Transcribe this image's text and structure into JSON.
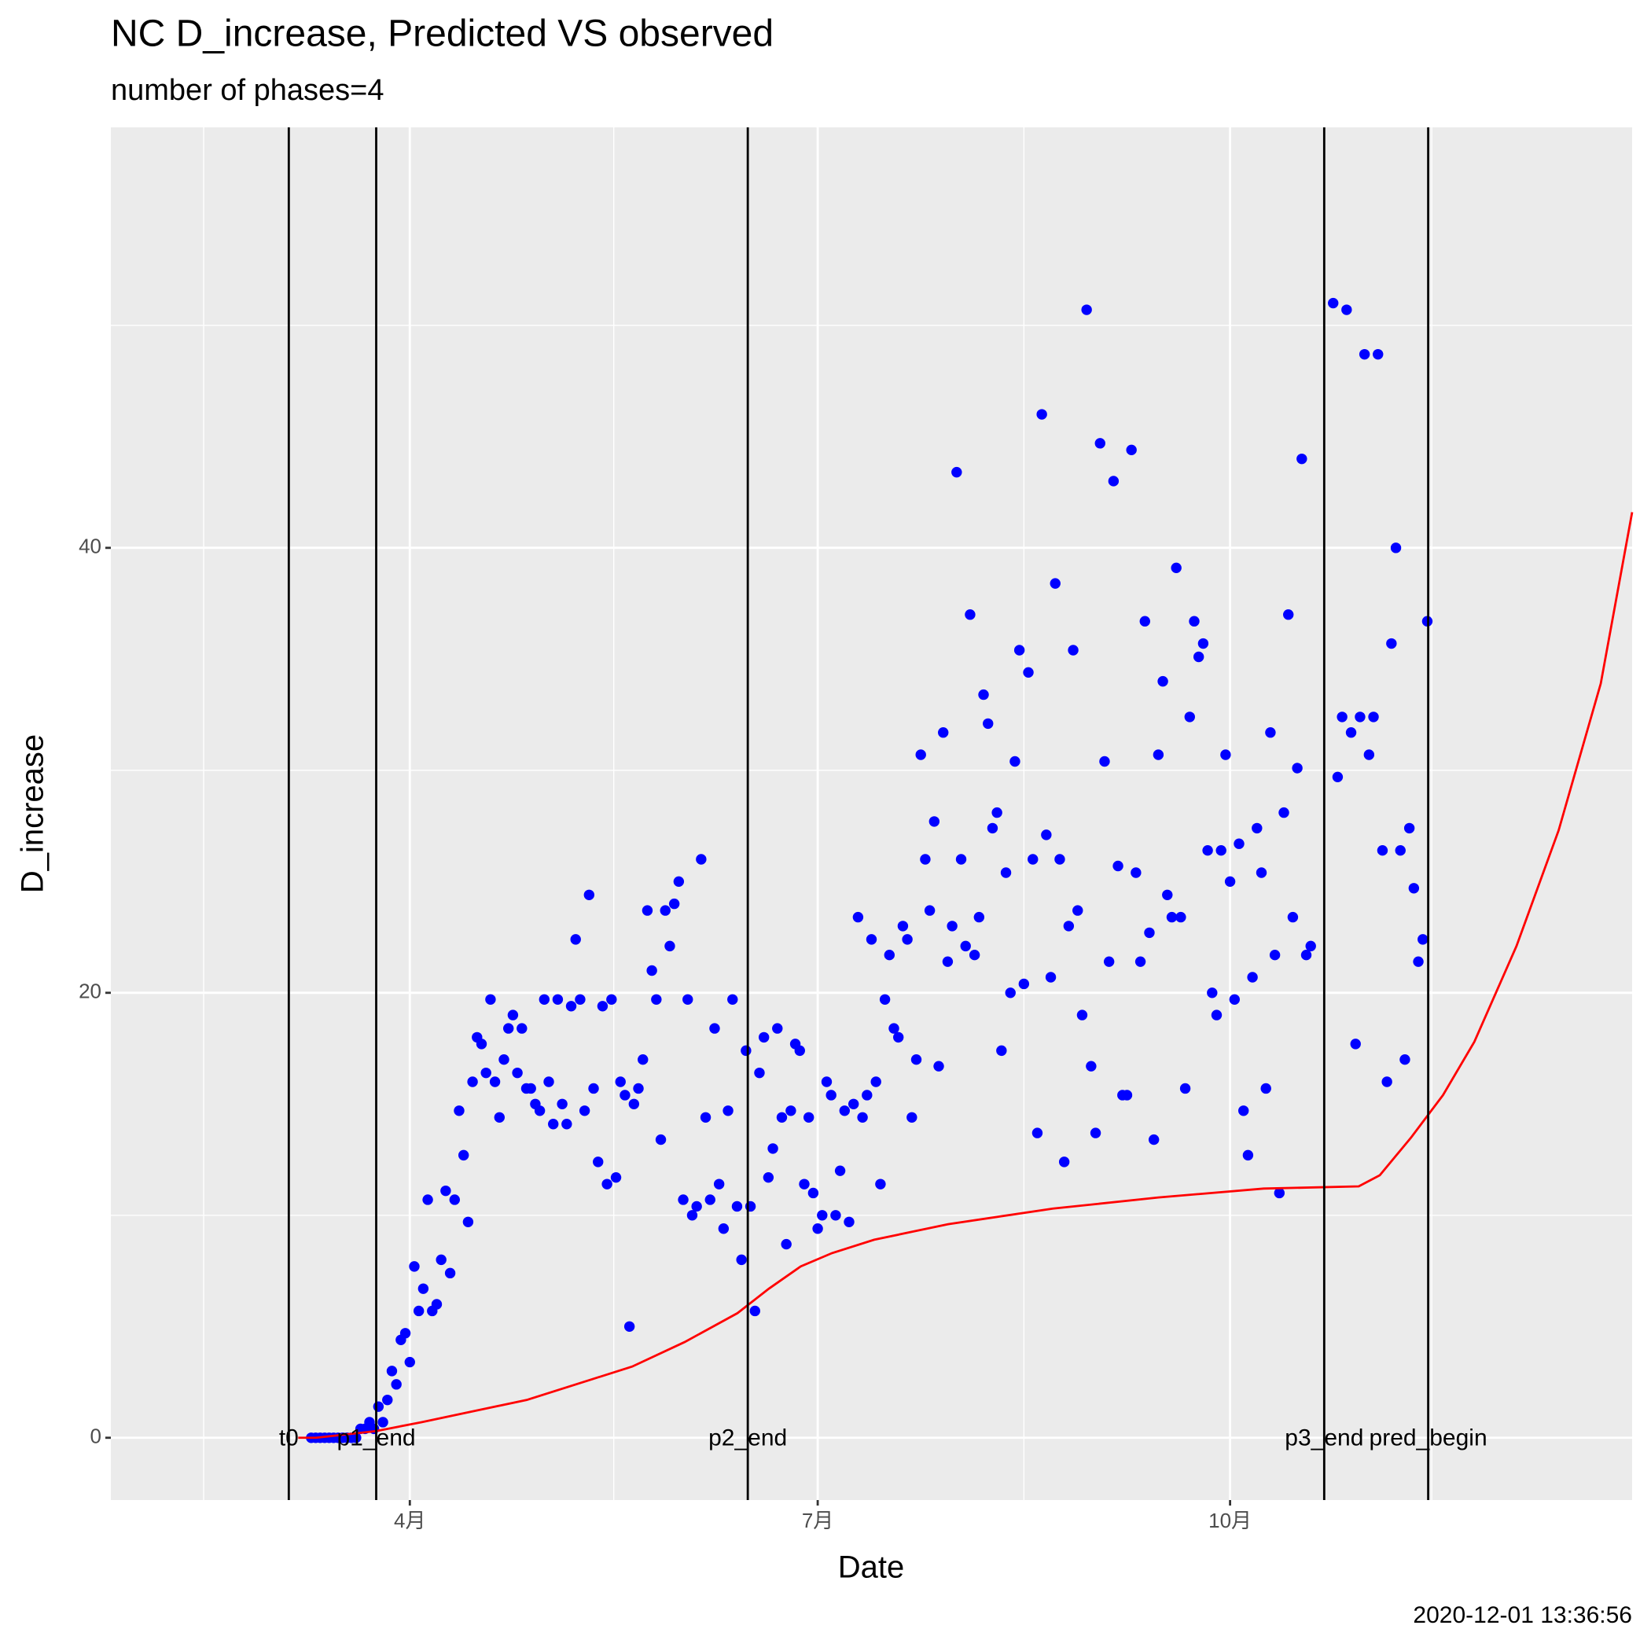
{
  "chart_data": {
    "type": "scatter",
    "title": "NC D_increase, Predicted VS observed",
    "subtitle": "number of phases=4",
    "xlabel": "Date",
    "ylabel": "D_increase",
    "caption": "2020-12-01 13:36:56",
    "xlim": [
      24.3,
      363.7
    ],
    "ylim": [
      -2.8,
      58.9
    ],
    "xticks": [
      {
        "value": 91,
        "label": "4月"
      },
      {
        "value": 182,
        "label": "7月"
      },
      {
        "value": 274,
        "label": "10月"
      }
    ],
    "yticks": [
      0,
      20,
      40
    ],
    "xminor": [
      45,
      136.5,
      228,
      319
    ],
    "yminor": [
      10,
      30,
      50
    ],
    "grid": true,
    "vlines": [
      {
        "x": 64,
        "label": "t0"
      },
      {
        "x": 83.5,
        "label": "p1_end"
      },
      {
        "x": 166.4,
        "label": "p2_end"
      },
      {
        "x": 295,
        "label": "p3_end"
      },
      {
        "x": 318.2,
        "label": "pred_begin"
      }
    ],
    "series": [
      {
        "type": "scatter",
        "color": "#0000ff",
        "x": [
          69,
          70,
          71,
          72,
          73,
          74,
          75,
          76,
          77,
          78,
          79,
          80,
          81,
          82,
          83,
          84,
          85,
          86,
          87,
          88,
          89,
          90,
          91,
          92,
          93,
          94,
          95,
          96,
          97,
          98,
          99,
          100,
          101,
          102,
          103,
          104,
          105,
          106,
          107,
          108,
          109,
          110,
          111,
          112,
          113,
          114,
          115,
          116,
          117,
          118,
          119,
          120,
          121,
          122,
          123,
          124,
          125,
          126,
          127,
          128,
          129,
          130,
          131,
          132,
          133,
          134,
          135,
          136,
          137,
          138,
          139,
          140,
          141,
          142,
          143,
          144,
          145,
          146,
          147,
          148,
          149,
          150,
          151,
          152,
          153,
          154,
          155,
          156,
          157,
          158,
          159,
          160,
          161,
          162,
          163,
          164,
          165,
          166,
          167,
          168,
          169,
          170,
          171,
          172,
          173,
          174,
          175,
          176,
          177,
          178,
          179,
          180,
          181,
          182,
          183,
          184,
          185,
          186,
          187,
          188,
          189,
          190,
          191,
          192,
          193,
          194,
          195,
          196,
          197,
          198,
          199,
          200,
          201,
          202,
          203,
          204,
          205,
          206,
          207,
          208,
          209,
          210,
          211,
          212,
          213,
          214,
          215,
          216,
          217,
          218,
          219,
          220,
          221,
          222,
          223,
          224,
          225,
          226,
          227,
          228,
          229,
          230,
          231,
          232,
          233,
          234,
          235,
          236,
          237,
          238,
          239,
          240,
          241,
          242,
          243,
          244,
          245,
          246,
          247,
          248,
          249,
          250,
          251,
          252,
          253,
          254,
          255,
          256,
          257,
          258,
          259,
          260,
          261,
          262,
          263,
          264,
          265,
          266,
          267,
          268,
          269,
          270,
          271,
          272,
          273,
          274,
          275,
          276,
          277,
          278,
          279,
          280,
          281,
          282,
          283,
          284,
          285,
          286,
          287,
          288,
          289,
          290,
          291,
          292,
          297,
          298,
          299,
          300,
          301,
          302,
          303,
          304,
          305,
          306,
          307,
          308,
          309,
          310,
          311,
          312,
          313,
          314,
          315,
          316,
          317,
          318
        ],
        "values": [
          0,
          0,
          0,
          0,
          0,
          0,
          0,
          0,
          0,
          0,
          0,
          0.4,
          0.4,
          0.7,
          0.4,
          1.4,
          0.7,
          1.7,
          3.0,
          2.4,
          4.4,
          4.7,
          3.4,
          7.7,
          5.7,
          6.7,
          10.7,
          5.7,
          6.0,
          8.0,
          11.1,
          7.4,
          10.7,
          14.7,
          12.7,
          9.7,
          16.0,
          18.0,
          17.7,
          16.4,
          19.7,
          16.0,
          14.4,
          17.0,
          18.4,
          19.0,
          16.4,
          18.4,
          15.7,
          15.7,
          15.0,
          14.7,
          19.7,
          16.0,
          14.1,
          19.7,
          15.0,
          14.1,
          19.4,
          22.4,
          19.7,
          14.7,
          24.4,
          15.7,
          12.4,
          19.4,
          11.4,
          19.7,
          11.7,
          16.0,
          15.4,
          5.0,
          15.0,
          15.7,
          17.0,
          23.7,
          21.0,
          19.7,
          13.4,
          23.7,
          22.1,
          24.0,
          25.0,
          10.7,
          19.7,
          10.0,
          10.4,
          26.0,
          14.4,
          10.7,
          18.4,
          11.4,
          9.4,
          14.7,
          19.7,
          10.4,
          8.0,
          17.4,
          10.4,
          5.7,
          16.4,
          18.0,
          11.7,
          13.0,
          18.4,
          14.4,
          8.7,
          14.7,
          17.7,
          17.4,
          11.4,
          14.4,
          11.0,
          9.4,
          10.0,
          16.0,
          15.4,
          10.0,
          12.0,
          14.7,
          9.7,
          15.0,
          23.4,
          14.4,
          15.4,
          22.4,
          16.0,
          11.4,
          19.7,
          21.7,
          18.4,
          18.0,
          23.0,
          22.4,
          14.4,
          17.0,
          30.7,
          26.0,
          23.7,
          27.7,
          16.7,
          31.7,
          21.4,
          23.0,
          43.4,
          26.0,
          22.1,
          37.0,
          21.7,
          23.4,
          33.4,
          32.1,
          27.4,
          28.1,
          17.4,
          25.4,
          20.0,
          30.4,
          35.4,
          20.4,
          34.4,
          26.0,
          13.7,
          46.0,
          27.1,
          20.7,
          38.4,
          26.0,
          12.4,
          23.0,
          35.4,
          23.7,
          19.0,
          50.7,
          16.7,
          13.7,
          44.7,
          30.4,
          21.4,
          43.0,
          25.7,
          15.4,
          15.4,
          44.4,
          25.4,
          21.4,
          36.7,
          22.7,
          13.4,
          30.7,
          34.0,
          24.4,
          23.4,
          39.1,
          23.4,
          15.7,
          32.4,
          36.7,
          35.1,
          35.7,
          26.4,
          20.0,
          19.0,
          26.4,
          30.7,
          25.0,
          19.7,
          26.7,
          14.7,
          12.7,
          20.7,
          27.4,
          25.4,
          15.7,
          31.7,
          21.7,
          11.0,
          28.1,
          37.0,
          23.4,
          30.1,
          44.0,
          21.7,
          22.1,
          51.0,
          29.7,
          32.4,
          50.7,
          31.7,
          17.7,
          32.4,
          48.7,
          30.7,
          32.4,
          48.7,
          26.4,
          16.0,
          35.7,
          40.0,
          26.4,
          17.0,
          27.4,
          24.7,
          21.4,
          22.4,
          36.7
        ]
      },
      {
        "type": "line",
        "color": "#ff0000",
        "x": [
          66.1,
          70.1,
          83.5,
          93.6,
          103.0,
          117.1,
          131.2,
          140.6,
          152.3,
          164.1,
          171.1,
          178.2,
          185.2,
          194.6,
          211.1,
          234.5,
          258.0,
          281.5,
          302.7,
          307.4,
          314.4,
          321.5,
          328.5,
          337.9,
          347.3,
          356.7,
          363.7
        ],
        "values": [
          0,
          0,
          0.3,
          0.7,
          1.1,
          1.7,
          2.6,
          3.2,
          4.3,
          5.6,
          6.7,
          7.7,
          8.3,
          8.9,
          9.6,
          10.3,
          10.8,
          11.2,
          11.3,
          11.8,
          13.5,
          15.4,
          17.8,
          22.1,
          27.3,
          33.9,
          41.6
        ]
      }
    ]
  }
}
